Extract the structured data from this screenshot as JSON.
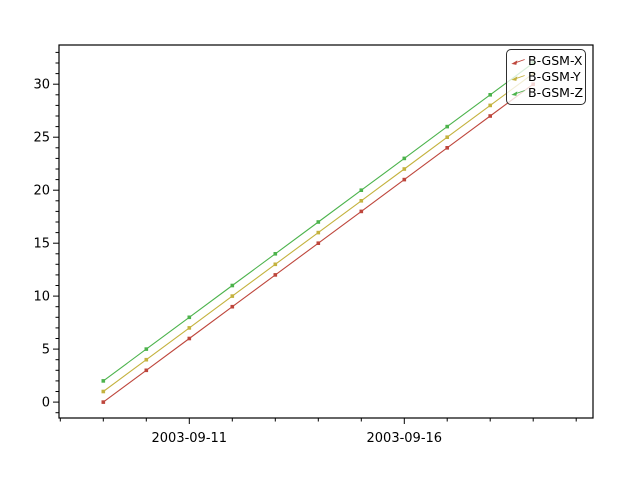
{
  "chart_data": {
    "type": "line",
    "title": "",
    "xlabel": "",
    "ylabel": "",
    "x_dates": [
      "2003-09-09",
      "2003-09-10",
      "2003-09-11",
      "2003-09-12",
      "2003-09-13",
      "2003-09-14",
      "2003-09-15",
      "2003-09-16",
      "2003-09-17",
      "2003-09-18",
      "2003-09-19"
    ],
    "series": [
      {
        "name": "B-GSM-X",
        "color": "#be463c",
        "values": [
          0,
          3,
          6,
          9,
          12,
          15,
          18,
          21,
          24,
          27,
          30
        ]
      },
      {
        "name": "B-GSM-Y",
        "color": "#c4b23e",
        "values": [
          1,
          4,
          7,
          10,
          13,
          16,
          19,
          22,
          25,
          28,
          31
        ]
      },
      {
        "name": "B-GSM-Z",
        "color": "#4cb34c",
        "values": [
          2,
          5,
          8,
          11,
          14,
          17,
          20,
          23,
          26,
          29,
          32
        ]
      }
    ],
    "x_axis": {
      "major_ticks": [
        {
          "label": "2003-09-11",
          "day_index": 2
        },
        {
          "label": "2003-09-16",
          "day_index": 7
        }
      ],
      "minor_tick_every_days": 1,
      "lim_days": [
        -1.03,
        11.39
      ]
    },
    "y_axis": {
      "major_tick_labels": [
        "0",
        "5",
        "10",
        "15",
        "20",
        "25",
        "30"
      ],
      "major_ticks": [
        0,
        5,
        10,
        15,
        20,
        25,
        30
      ],
      "minor_tick_every": 1,
      "lim": [
        -1.5,
        33.7
      ]
    },
    "legend": {
      "position": "upper right",
      "entries": [
        "B-GSM-X",
        "B-GSM-Y",
        "B-GSM-Z"
      ]
    },
    "grid": false,
    "marker": "square",
    "colors": {
      "frame": "#000000",
      "tick_text": "#000000",
      "background": "#ffffff"
    }
  }
}
